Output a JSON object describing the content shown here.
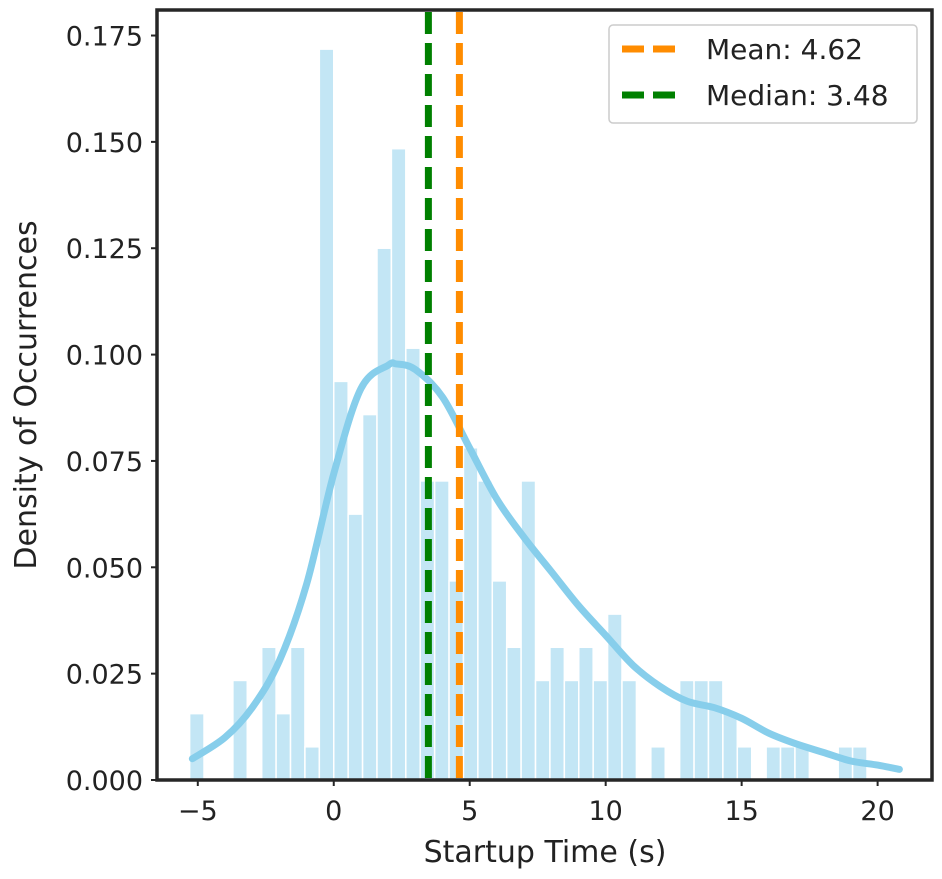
{
  "chart_data": {
    "type": "histogram",
    "xlabel": "Startup Time (s)",
    "ylabel": "Density of Occurrences",
    "xlim": [
      -6.5,
      22
    ],
    "ylim": [
      0,
      0.181
    ],
    "xticks": [
      -5,
      0,
      5,
      10,
      15,
      20
    ],
    "xtick_labels": [
      "−5",
      "0",
      "5",
      "10",
      "15",
      "20"
    ],
    "yticks": [
      0,
      0.025,
      0.05,
      0.075,
      0.1,
      0.125,
      0.15,
      0.175
    ],
    "ytick_labels": [
      "0.000",
      "0.025",
      "0.050",
      "0.075",
      "0.100",
      "0.125",
      "0.150",
      "0.175"
    ],
    "grid": false,
    "legend_position": "top-right",
    "colors": {
      "bars": "#87ceeb",
      "kde": "#87ceeb",
      "mean_line": "#ff8c00",
      "median_line": "#008000",
      "frame": "#262626"
    },
    "bins": {
      "start": -5.3,
      "width": 0.53,
      "heights": [
        0.0156,
        0,
        0,
        0.0234,
        0,
        0.0312,
        0.0156,
        0.0312,
        0.0078,
        0.1718,
        0.0937,
        0.0625,
        0.0859,
        0.125,
        0.1484,
        0.1015,
        0.0703,
        0.0703,
        0.0468,
        0.0781,
        0.0703,
        0.0468,
        0.0312,
        0.0703,
        0.0234,
        0.0312,
        0.0234,
        0.0312,
        0.0234,
        0.039,
        0.0234,
        0,
        0.0078,
        0,
        0.0234,
        0.0234,
        0.0234,
        0.0156,
        0.0078,
        0,
        0.0078,
        0.0078,
        0.0078,
        0,
        0,
        0.0078,
        0.0078
      ]
    },
    "kde": {
      "x": [
        -5.2,
        -4,
        -3,
        -2,
        -1,
        0,
        1,
        2,
        2.3,
        3,
        4,
        5,
        6,
        7,
        8,
        9,
        10,
        11,
        12,
        13,
        14,
        15,
        16,
        17,
        18,
        19,
        20,
        20.8
      ],
      "y": [
        0.005,
        0.01,
        0.017,
        0.028,
        0.046,
        0.072,
        0.092,
        0.0975,
        0.0978,
        0.0965,
        0.09,
        0.078,
        0.066,
        0.057,
        0.049,
        0.041,
        0.034,
        0.027,
        0.022,
        0.0185,
        0.017,
        0.0145,
        0.011,
        0.0085,
        0.0065,
        0.0045,
        0.0035,
        0.0025
      ]
    },
    "lines": [
      {
        "name": "Mean: 4.62",
        "x": 4.62,
        "style": "dashed"
      },
      {
        "name": "Median: 3.48",
        "x": 3.48,
        "style": "dashed"
      }
    ]
  }
}
